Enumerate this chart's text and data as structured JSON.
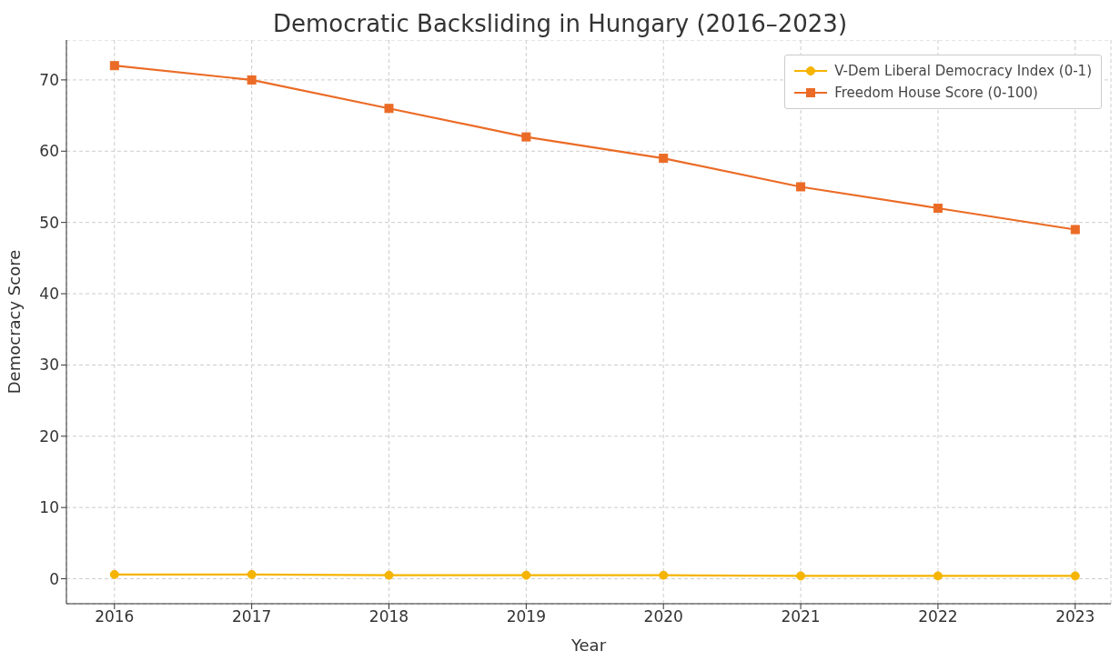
{
  "chart_data": {
    "type": "line",
    "title": "Democratic Backsliding in Hungary (2016–2023)",
    "xlabel": "Year",
    "ylabel": "Democracy Score",
    "x": [
      2016,
      2017,
      2018,
      2019,
      2020,
      2021,
      2022,
      2023
    ],
    "series": [
      {
        "name": "V-Dem Liberal Democracy Index (0-1)",
        "color": "#f5b400",
        "marker": "circle",
        "values": [
          0.6,
          0.6,
          0.5,
          0.5,
          0.5,
          0.4,
          0.4,
          0.4
        ]
      },
      {
        "name": "Freedom House Score (0-100)",
        "color": "#eb6b26",
        "marker": "square",
        "values": [
          72,
          70,
          66,
          62,
          59,
          55,
          52,
          49
        ]
      }
    ],
    "xlim": [
      2015.65,
      2023.26
    ],
    "xticks": [
      2016,
      2017,
      2018,
      2019,
      2020,
      2021,
      2022,
      2023
    ],
    "ylim": [
      -3.5,
      75.6
    ],
    "yticks": [
      0,
      10,
      20,
      30,
      40,
      50,
      60,
      70
    ],
    "grid": true,
    "legend": "top right",
    "line_style": "solid"
  }
}
